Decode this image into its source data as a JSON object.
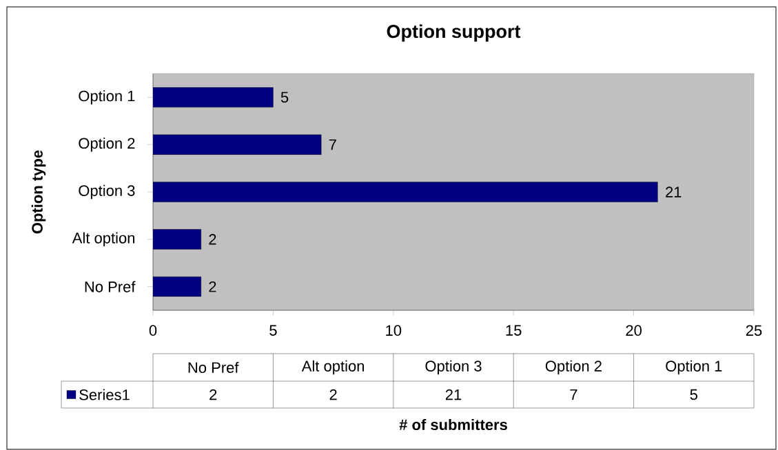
{
  "chart_data": {
    "type": "bar",
    "orientation": "horizontal",
    "title": "Option support",
    "ylabel": "Option type",
    "categories": [
      "Option 1",
      "Option 2",
      "Option 3",
      "Alt option",
      "No Pref"
    ],
    "series": [
      {
        "name": "Series1",
        "color": "#000080",
        "values": [
          5,
          7,
          21,
          2,
          2
        ],
        "value_labels": [
          "5",
          "7",
          "21",
          "2",
          "2"
        ]
      }
    ],
    "annotations": [
      "2",
      "2",
      "21",
      "7",
      "5",
      "# of submitters"
    ],
    "xlim": [
      0,
      25
    ],
    "xticks": [
      0,
      5,
      10,
      15,
      20,
      25
    ],
    "data_labels": true,
    "legend": "bottom left",
    "grid": false
  }
}
